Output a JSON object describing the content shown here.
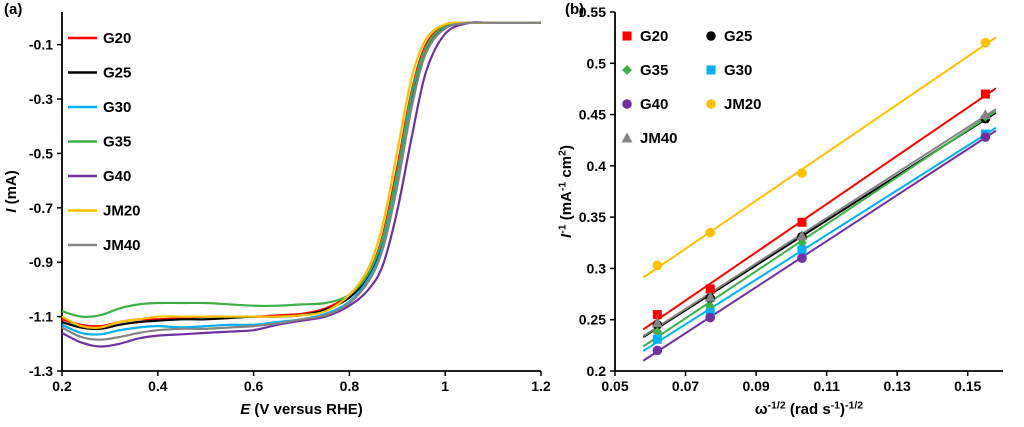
{
  "figure": {
    "panels": [
      {
        "label": "(a)"
      },
      {
        "label": "(b)"
      }
    ]
  },
  "chart_data": [
    {
      "type": "line",
      "panel": "a",
      "title": "",
      "xlabel_segments": [
        {
          "t": "E",
          "i": 1
        },
        {
          "t": " (V versus RHE)"
        }
      ],
      "ylabel_segments": [
        {
          "t": "I",
          "i": 1
        },
        {
          "t": " (mA)"
        }
      ],
      "xlim": [
        0.2,
        1.2
      ],
      "ylim": [
        -1.3,
        0.02
      ],
      "xticks": [
        0.2,
        0.4,
        0.6,
        0.8,
        1.0,
        1.2
      ],
      "xtick_labels": [
        "0.2",
        "0.4",
        "0.6",
        "0.8",
        "1",
        "1.2"
      ],
      "yticks": [
        -0.1,
        -0.3,
        -0.5,
        -0.7,
        -0.9,
        -1.1,
        -1.3
      ],
      "ytick_labels": [
        "-0.1",
        "-0.3",
        "-0.5",
        "-0.7",
        "-0.9",
        "-1.1",
        "-1.3"
      ],
      "grid": false,
      "legend_position": "top-left-vertical",
      "legend_order": [
        "G20",
        "G25",
        "G30",
        "G35",
        "G40",
        "JM20",
        "JM40"
      ],
      "series": [
        {
          "name": "G20",
          "color": "#ff0000",
          "points": [
            [
              0.2,
              -1.11
            ],
            [
              0.24,
              -1.13
            ],
            [
              0.28,
              -1.135
            ],
            [
              0.32,
              -1.12
            ],
            [
              0.36,
              -1.11
            ],
            [
              0.4,
              -1.11
            ],
            [
              0.45,
              -1.105
            ],
            [
              0.5,
              -1.1
            ],
            [
              0.55,
              -1.1
            ],
            [
              0.6,
              -1.1
            ],
            [
              0.65,
              -1.095
            ],
            [
              0.7,
              -1.09
            ],
            [
              0.75,
              -1.07
            ],
            [
              0.8,
              -1.02
            ],
            [
              0.84,
              -0.94
            ],
            [
              0.87,
              -0.8
            ],
            [
              0.9,
              -0.55
            ],
            [
              0.93,
              -0.27
            ],
            [
              0.96,
              -0.1
            ],
            [
              1.0,
              -0.03
            ],
            [
              1.05,
              -0.02
            ],
            [
              1.1,
              -0.02
            ],
            [
              1.2,
              -0.02
            ]
          ]
        },
        {
          "name": "G25",
          "color": "#000000",
          "points": [
            [
              0.2,
              -1.12
            ],
            [
              0.24,
              -1.14
            ],
            [
              0.28,
              -1.145
            ],
            [
              0.32,
              -1.13
            ],
            [
              0.36,
              -1.12
            ],
            [
              0.4,
              -1.115
            ],
            [
              0.45,
              -1.11
            ],
            [
              0.5,
              -1.11
            ],
            [
              0.55,
              -1.105
            ],
            [
              0.6,
              -1.1
            ],
            [
              0.65,
              -1.1
            ],
            [
              0.7,
              -1.095
            ],
            [
              0.75,
              -1.075
            ],
            [
              0.8,
              -1.03
            ],
            [
              0.84,
              -0.95
            ],
            [
              0.87,
              -0.82
            ],
            [
              0.9,
              -0.58
            ],
            [
              0.93,
              -0.3
            ],
            [
              0.96,
              -0.12
            ],
            [
              1.0,
              -0.035
            ],
            [
              1.05,
              -0.02
            ],
            [
              1.1,
              -0.02
            ],
            [
              1.2,
              -0.02
            ]
          ]
        },
        {
          "name": "G30",
          "color": "#00b0f0",
          "points": [
            [
              0.2,
              -1.13
            ],
            [
              0.24,
              -1.16
            ],
            [
              0.28,
              -1.165
            ],
            [
              0.32,
              -1.15
            ],
            [
              0.36,
              -1.14
            ],
            [
              0.4,
              -1.135
            ],
            [
              0.45,
              -1.14
            ],
            [
              0.5,
              -1.135
            ],
            [
              0.55,
              -1.13
            ],
            [
              0.6,
              -1.13
            ],
            [
              0.65,
              -1.12
            ],
            [
              0.7,
              -1.11
            ],
            [
              0.75,
              -1.09
            ],
            [
              0.8,
              -1.045
            ],
            [
              0.84,
              -0.96
            ],
            [
              0.87,
              -0.84
            ],
            [
              0.9,
              -0.6
            ],
            [
              0.93,
              -0.32
            ],
            [
              0.96,
              -0.13
            ],
            [
              1.0,
              -0.04
            ],
            [
              1.05,
              -0.02
            ],
            [
              1.1,
              -0.02
            ],
            [
              1.2,
              -0.02
            ]
          ]
        },
        {
          "name": "G35",
          "color": "#3fae49",
          "points": [
            [
              0.2,
              -1.08
            ],
            [
              0.24,
              -1.1
            ],
            [
              0.28,
              -1.095
            ],
            [
              0.32,
              -1.07
            ],
            [
              0.36,
              -1.055
            ],
            [
              0.4,
              -1.05
            ],
            [
              0.45,
              -1.05
            ],
            [
              0.5,
              -1.05
            ],
            [
              0.55,
              -1.055
            ],
            [
              0.6,
              -1.06
            ],
            [
              0.65,
              -1.06
            ],
            [
              0.7,
              -1.055
            ],
            [
              0.75,
              -1.05
            ],
            [
              0.8,
              -1.02
            ],
            [
              0.84,
              -0.94
            ],
            [
              0.87,
              -0.81
            ],
            [
              0.9,
              -0.57
            ],
            [
              0.93,
              -0.28
            ],
            [
              0.96,
              -0.11
            ],
            [
              1.0,
              -0.03
            ],
            [
              1.05,
              -0.02
            ],
            [
              1.1,
              -0.02
            ],
            [
              1.2,
              -0.02
            ]
          ]
        },
        {
          "name": "G40",
          "color": "#7030a0",
          "points": [
            [
              0.2,
              -1.16
            ],
            [
              0.24,
              -1.195
            ],
            [
              0.28,
              -1.21
            ],
            [
              0.32,
              -1.2
            ],
            [
              0.36,
              -1.18
            ],
            [
              0.4,
              -1.17
            ],
            [
              0.45,
              -1.165
            ],
            [
              0.5,
              -1.16
            ],
            [
              0.55,
              -1.155
            ],
            [
              0.6,
              -1.15
            ],
            [
              0.65,
              -1.13
            ],
            [
              0.7,
              -1.115
            ],
            [
              0.75,
              -1.1
            ],
            [
              0.8,
              -1.06
            ],
            [
              0.84,
              -1.0
            ],
            [
              0.87,
              -0.91
            ],
            [
              0.9,
              -0.71
            ],
            [
              0.93,
              -0.44
            ],
            [
              0.96,
              -0.2
            ],
            [
              1.0,
              -0.06
            ],
            [
              1.05,
              -0.02
            ],
            [
              1.1,
              -0.02
            ],
            [
              1.2,
              -0.02
            ]
          ]
        },
        {
          "name": "JM20",
          "color": "#ffc000",
          "points": [
            [
              0.2,
              -1.1
            ],
            [
              0.24,
              -1.135
            ],
            [
              0.28,
              -1.14
            ],
            [
              0.32,
              -1.12
            ],
            [
              0.36,
              -1.11
            ],
            [
              0.4,
              -1.1
            ],
            [
              0.45,
              -1.1
            ],
            [
              0.5,
              -1.1
            ],
            [
              0.55,
              -1.1
            ],
            [
              0.6,
              -1.1
            ],
            [
              0.65,
              -1.1
            ],
            [
              0.7,
              -1.095
            ],
            [
              0.75,
              -1.08
            ],
            [
              0.8,
              -1.02
            ],
            [
              0.84,
              -0.92
            ],
            [
              0.87,
              -0.76
            ],
            [
              0.9,
              -0.49
            ],
            [
              0.93,
              -0.22
            ],
            [
              0.96,
              -0.08
            ],
            [
              1.0,
              -0.025
            ],
            [
              1.05,
              -0.02
            ],
            [
              1.1,
              -0.02
            ],
            [
              1.2,
              -0.02
            ]
          ]
        },
        {
          "name": "JM40",
          "color": "#848484",
          "points": [
            [
              0.2,
              -1.14
            ],
            [
              0.24,
              -1.175
            ],
            [
              0.28,
              -1.185
            ],
            [
              0.32,
              -1.175
            ],
            [
              0.36,
              -1.16
            ],
            [
              0.4,
              -1.15
            ],
            [
              0.45,
              -1.145
            ],
            [
              0.5,
              -1.145
            ],
            [
              0.55,
              -1.14
            ],
            [
              0.6,
              -1.135
            ],
            [
              0.65,
              -1.125
            ],
            [
              0.7,
              -1.11
            ],
            [
              0.75,
              -1.095
            ],
            [
              0.8,
              -1.05
            ],
            [
              0.84,
              -0.97
            ],
            [
              0.87,
              -0.85
            ],
            [
              0.9,
              -0.62
            ],
            [
              0.93,
              -0.33
            ],
            [
              0.96,
              -0.13
            ],
            [
              1.0,
              -0.04
            ],
            [
              1.05,
              -0.02
            ],
            [
              1.1,
              -0.02
            ],
            [
              1.2,
              -0.02
            ]
          ]
        }
      ]
    },
    {
      "type": "scatter",
      "panel": "b",
      "title": "",
      "xlabel_segments": [
        {
          "t": "ω"
        },
        {
          "t": "-1/2",
          "sup": 1
        },
        {
          "t": " (rad s"
        },
        {
          "t": "-1",
          "sup": 1
        },
        {
          "t": ")"
        },
        {
          "t": "-1/2",
          "sup": 1
        }
      ],
      "ylabel_segments": [
        {
          "t": "I",
          "i": 1
        },
        {
          "t": "-1",
          "sup": 1
        },
        {
          "t": " (mA"
        },
        {
          "t": "-1",
          "sup": 1
        },
        {
          "t": " cm"
        },
        {
          "t": "2",
          "sup": 1
        },
        {
          "t": ")"
        }
      ],
      "xlim": [
        0.05,
        0.16
      ],
      "ylim": [
        0.2,
        0.55
      ],
      "xticks": [
        0.05,
        0.07,
        0.09,
        0.11,
        0.13,
        0.15
      ],
      "xtick_labels": [
        "0.05",
        "0.07",
        "0.09",
        "0.11",
        "0.13",
        "0.15"
      ],
      "yticks": [
        0.2,
        0.25,
        0.3,
        0.35,
        0.4,
        0.45,
        0.5,
        0.55
      ],
      "ytick_labels": [
        "0.2",
        "0.25",
        "0.3",
        "0.35",
        "0.4",
        "0.45",
        "0.5",
        "0.55"
      ],
      "grid": false,
      "x": [
        0.062,
        0.077,
        0.103,
        0.155
      ],
      "fit_line_x_range": [
        0.058,
        0.158
      ],
      "legend_grid": [
        [
          "G20",
          "G25"
        ],
        [
          "G35",
          "G30"
        ],
        [
          "G40",
          "JM20"
        ],
        [
          "JM40"
        ]
      ],
      "series": [
        {
          "name": "G20",
          "color": "#ff0000",
          "marker": "square",
          "values": [
            0.255,
            0.28,
            0.345,
            0.47
          ]
        },
        {
          "name": "G25",
          "color": "#000000",
          "marker": "circle",
          "values": [
            0.245,
            0.271,
            0.331,
            0.446
          ]
        },
        {
          "name": "G35",
          "color": "#3fae49",
          "marker": "diamond",
          "values": [
            0.238,
            0.263,
            0.325,
            0.448
          ]
        },
        {
          "name": "G30",
          "color": "#00b0f0",
          "marker": "square",
          "values": [
            0.231,
            0.257,
            0.318,
            0.431
          ]
        },
        {
          "name": "G40",
          "color": "#7030a0",
          "marker": "circle",
          "values": [
            0.22,
            0.252,
            0.31,
            0.428
          ]
        },
        {
          "name": "JM20",
          "color": "#ffc000",
          "marker": "circle",
          "values": [
            0.303,
            0.335,
            0.393,
            0.52
          ]
        },
        {
          "name": "JM40",
          "color": "#848484",
          "marker": "triangle",
          "values": [
            0.247,
            0.272,
            0.332,
            0.45
          ]
        }
      ]
    }
  ]
}
